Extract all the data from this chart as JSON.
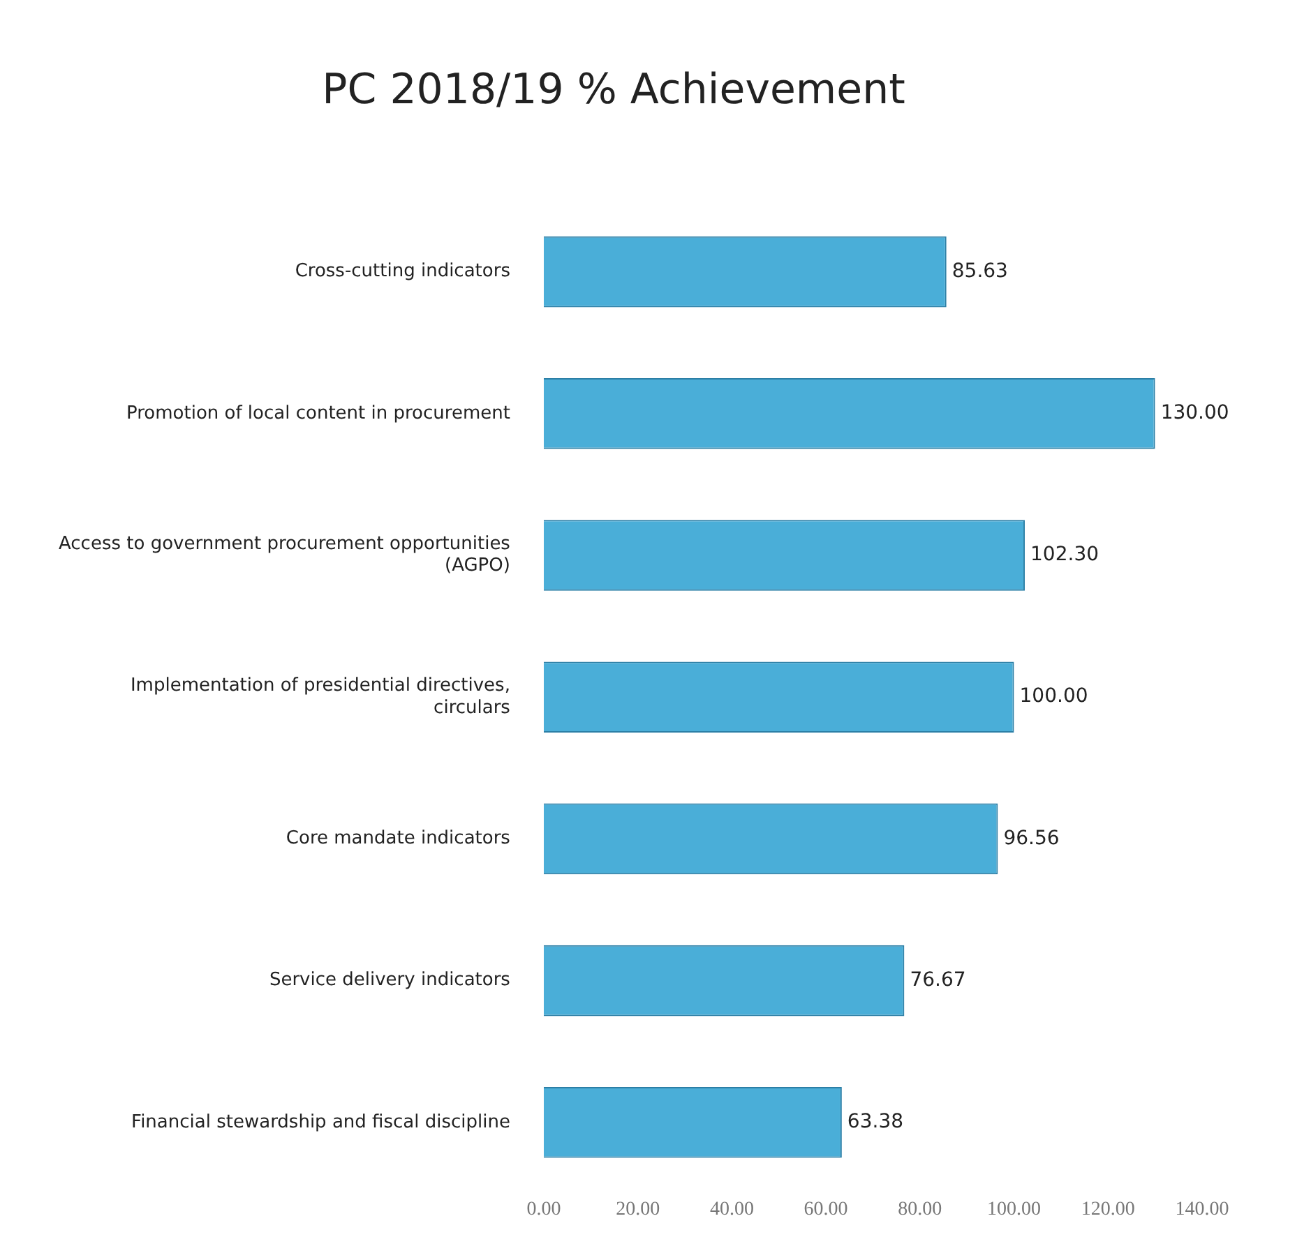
{
  "chart_data": {
    "type": "bar",
    "orientation": "horizontal",
    "title": "PC 2018/19 % Achievement",
    "categories": [
      "Cross-cutting indicators",
      "Promotion of local content in procurement",
      "Access to government procurement opportunities (AGPO)",
      "Implementation of presidential directives, circulars",
      "Core mandate indicators",
      "Service delivery indicators",
      "Financial stewardship and fiscal discipline"
    ],
    "values": [
      85.63,
      130,
      102.3,
      100,
      96.56,
      76.67,
      63.38
    ],
    "value_labels": [
      "85.63",
      "130.00",
      "102.30",
      "100.00",
      "96.56",
      "76.67",
      "63.38"
    ],
    "color": "#4aaed8",
    "xlim": [
      0,
      140
    ],
    "xticks": [
      {
        "value": 0,
        "label": "0.00"
      },
      {
        "value": 20,
        "label": "20.00"
      },
      {
        "value": 40,
        "label": "40.00"
      },
      {
        "value": 60,
        "label": "60.00"
      },
      {
        "value": 80,
        "label": "80.00"
      },
      {
        "value": 100,
        "label": "100.00"
      },
      {
        "value": 120,
        "label": "120.00"
      },
      {
        "value": 140,
        "label": "140.00"
      }
    ],
    "grid": false,
    "legend": false
  }
}
